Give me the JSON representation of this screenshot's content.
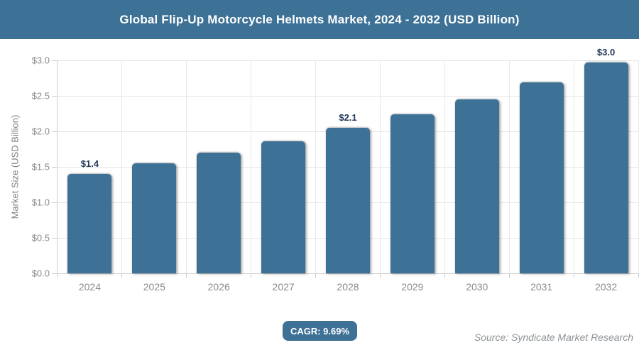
{
  "header": {
    "title": "Global Flip-Up Motorcycle Helmets Market, 2024 - 2032 (USD Billion)"
  },
  "colors": {
    "accent_blue": "#3d7196",
    "bar_blue": "#3d7296",
    "data_label_navy": "#22395a",
    "axis_text_gray": "#8a8a8a",
    "gridline_gray": "#e5e5e5",
    "source_gray": "#8d9296"
  },
  "chart_data": {
    "type": "bar",
    "title": "Global Flip-Up Motorcycle Helmets Market, 2024 - 2032 (USD Billion)",
    "categories": [
      "2024",
      "2025",
      "2026",
      "2027",
      "2028",
      "2029",
      "2030",
      "2031",
      "2032"
    ],
    "values": [
      1.4,
      1.55,
      1.7,
      1.86,
      2.05,
      2.24,
      2.45,
      2.69,
      2.97
    ],
    "data_labels": {
      "2024": "$1.4",
      "2028": "$2.1",
      "2032": "$3.0"
    },
    "xlabel": "",
    "ylabel": "Market Size (USD Billion)",
    "ylim": [
      0,
      3.0
    ],
    "ytick_step": 0.5,
    "ytick_labels": [
      "$0.0",
      "$0.5",
      "$1.0",
      "$1.5",
      "$2.0",
      "$2.5",
      "$3.0"
    ],
    "grid": true,
    "legend": false
  },
  "footer": {
    "cagr_label": "CAGR: 9.69%",
    "source": "Source: Syndicate Market Research"
  }
}
